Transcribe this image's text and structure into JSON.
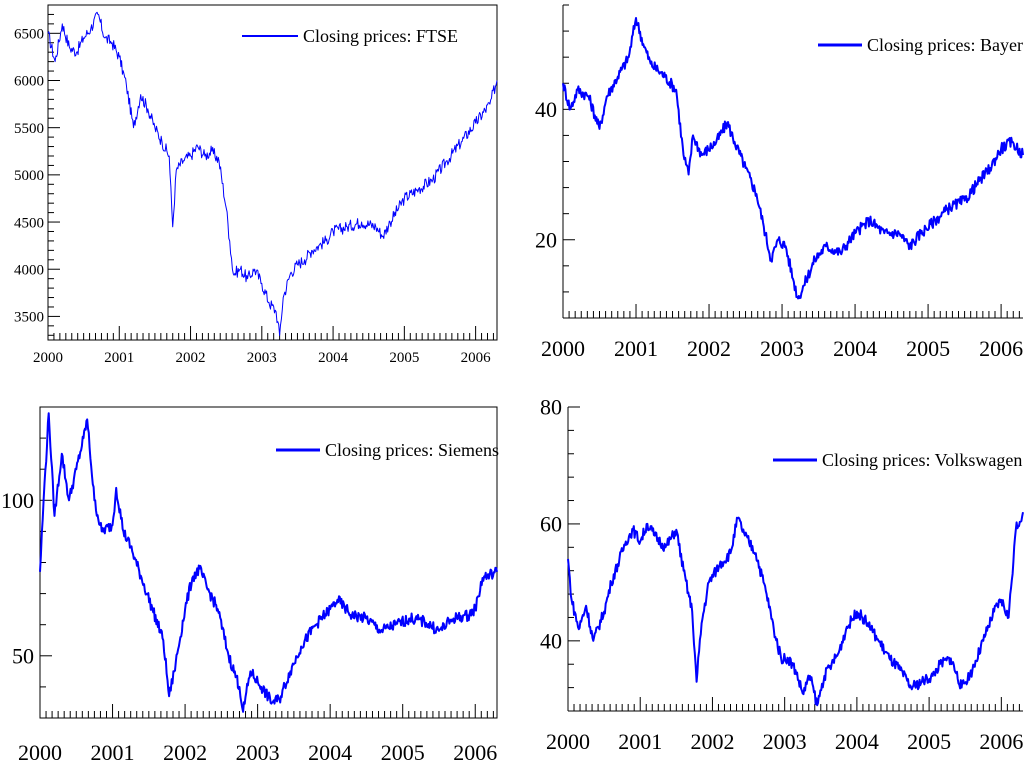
{
  "colors": {
    "series": "#0000ff",
    "axis": "#000000",
    "background": "#ffffff"
  },
  "chart_data": [
    {
      "type": "line",
      "legend": "Closing prices: FTSE",
      "legend_placement": "top-right",
      "grid": false,
      "xlim": [
        2000.0,
        2006.3
      ],
      "ylim": [
        3250,
        6800
      ],
      "xticks": [
        2000,
        2001,
        2002,
        2003,
        2004,
        2005,
        2006
      ],
      "xtick_labels": [
        "2000",
        "2001",
        "2002",
        "2003",
        "2004",
        "2005",
        "2006"
      ],
      "yticks": [
        3500,
        4000,
        4500,
        5000,
        5500,
        6000,
        6500
      ],
      "ytick_labels": [
        "3500",
        "4000",
        "4500",
        "5000",
        "5500",
        "6000",
        "6500"
      ],
      "series": [
        {
          "x": [
            2000.0,
            2000.1,
            2000.2,
            2000.3,
            2000.4,
            2000.5,
            2000.6,
            2000.7,
            2000.8,
            2000.9,
            2001.0,
            2001.1,
            2001.2,
            2001.3,
            2001.4,
            2001.5,
            2001.6,
            2001.7,
            2001.75,
            2001.8,
            2001.9,
            2002.0,
            2002.1,
            2002.2,
            2002.3,
            2002.4,
            2002.5,
            2002.55,
            2002.6,
            2002.7,
            2002.8,
            2002.9,
            2003.0,
            2003.1,
            2003.2,
            2003.25,
            2003.3,
            2003.4,
            2003.5,
            2003.6,
            2003.7,
            2003.8,
            2003.9,
            2004.0,
            2004.2,
            2004.4,
            2004.6,
            2004.7,
            2004.8,
            2005.0,
            2005.2,
            2005.4,
            2005.6,
            2005.8,
            2006.0,
            2006.2,
            2006.3
          ],
          "y": [
            6500,
            6200,
            6600,
            6350,
            6300,
            6450,
            6550,
            6700,
            6450,
            6400,
            6250,
            5950,
            5500,
            5850,
            5700,
            5500,
            5350,
            5200,
            4450,
            5050,
            5150,
            5200,
            5300,
            5200,
            5250,
            5150,
            4650,
            4300,
            3950,
            4000,
            3900,
            4000,
            3850,
            3650,
            3550,
            3300,
            3700,
            3950,
            4050,
            4100,
            4200,
            4250,
            4300,
            4400,
            4450,
            4500,
            4450,
            4350,
            4500,
            4750,
            4850,
            4950,
            5150,
            5350,
            5550,
            5750,
            6000
          ]
        }
      ]
    },
    {
      "type": "line",
      "legend": "Closing prices: Bayer",
      "legend_placement": "top-right",
      "grid": false,
      "xlim": [
        2000.0,
        2006.3
      ],
      "ylim": [
        8,
        56
      ],
      "xticks": [
        2000,
        2001,
        2002,
        2003,
        2004,
        2005,
        2006
      ],
      "xtick_labels": [
        "2000",
        "2001",
        "2002",
        "2003",
        "2004",
        "2005",
        "2006"
      ],
      "yticks": [
        20,
        40
      ],
      "ytick_labels": [
        "20",
        "40"
      ],
      "series": [
        {
          "x": [
            2000.0,
            2000.1,
            2000.2,
            2000.35,
            2000.5,
            2000.6,
            2000.75,
            2000.9,
            2001.0,
            2001.1,
            2001.2,
            2001.3,
            2001.4,
            2001.55,
            2001.65,
            2001.72,
            2001.78,
            2001.9,
            2002.1,
            2002.25,
            2002.35,
            2002.5,
            2002.65,
            2002.75,
            2002.85,
            2002.95,
            2003.05,
            2003.15,
            2003.22,
            2003.3,
            2003.45,
            2003.6,
            2003.8,
            2004.0,
            2004.2,
            2004.4,
            2004.6,
            2004.75,
            2004.9,
            2005.1,
            2005.3,
            2005.5,
            2005.7,
            2005.85,
            2006.0,
            2006.15,
            2006.3
          ],
          "y": [
            44,
            40,
            43,
            42,
            37,
            42,
            45,
            48,
            54,
            50,
            47,
            46,
            45,
            43,
            33,
            30,
            36,
            33,
            35,
            38,
            35,
            31,
            27,
            22,
            17,
            20,
            19,
            14,
            11,
            13,
            17,
            19,
            18,
            21,
            23,
            21,
            21,
            19,
            21,
            23,
            25,
            26,
            29,
            31,
            34,
            35,
            33
          ]
        }
      ]
    },
    {
      "type": "line",
      "legend": "Closing prices: Siemens",
      "legend_placement": "top-right",
      "grid": false,
      "xlim": [
        2000.0,
        2006.3
      ],
      "ylim": [
        30,
        130
      ],
      "xticks": [
        2000,
        2001,
        2002,
        2003,
        2004,
        2005,
        2006
      ],
      "xtick_labels": [
        "2000",
        "2001",
        "2002",
        "2003",
        "2004",
        "2005",
        "2006"
      ],
      "yticks": [
        50,
        100
      ],
      "ytick_labels": [
        "50",
        "100"
      ],
      "series": [
        {
          "x": [
            2000.0,
            2000.05,
            2000.12,
            2000.2,
            2000.3,
            2000.4,
            2000.5,
            2000.6,
            2000.65,
            2000.75,
            2000.85,
            2001.0,
            2001.05,
            2001.15,
            2001.25,
            2001.4,
            2001.55,
            2001.7,
            2001.78,
            2001.85,
            2002.0,
            2002.1,
            2002.2,
            2002.3,
            2002.45,
            2002.6,
            2002.75,
            2002.8,
            2002.9,
            2003.05,
            2003.2,
            2003.3,
            2003.45,
            2003.6,
            2003.8,
            2004.0,
            2004.1,
            2004.3,
            2004.5,
            2004.7,
            2004.9,
            2005.1,
            2005.3,
            2005.5,
            2005.7,
            2005.9,
            2006.0,
            2006.1,
            2006.3
          ],
          "y": [
            77,
            100,
            128,
            95,
            115,
            100,
            110,
            120,
            126,
            100,
            90,
            92,
            104,
            90,
            85,
            75,
            65,
            55,
            37,
            45,
            65,
            75,
            78,
            72,
            65,
            50,
            40,
            32,
            45,
            40,
            35,
            36,
            45,
            53,
            60,
            65,
            68,
            63,
            62,
            58,
            60,
            62,
            61,
            58,
            62,
            63,
            65,
            75,
            77
          ]
        }
      ]
    },
    {
      "type": "line",
      "legend": "Closing prices: Volkswagen",
      "legend_placement": "top-right",
      "grid": false,
      "xlim": [
        2000.0,
        2006.3
      ],
      "ylim": [
        28,
        80
      ],
      "xticks": [
        2000,
        2001,
        2002,
        2003,
        2004,
        2005,
        2006
      ],
      "xtick_labels": [
        "2000",
        "2001",
        "2002",
        "2003",
        "2004",
        "2005",
        "2006"
      ],
      "yticks": [
        40,
        60,
        80
      ],
      "ytick_labels": [
        "40",
        "60",
        "80"
      ],
      "series": [
        {
          "x": [
            2000.0,
            2000.05,
            2000.15,
            2000.25,
            2000.35,
            2000.5,
            2000.6,
            2000.8,
            2000.9,
            2001.0,
            2001.1,
            2001.2,
            2001.35,
            2001.5,
            2001.6,
            2001.72,
            2001.78,
            2001.85,
            2001.95,
            2002.1,
            2002.25,
            2002.35,
            2002.45,
            2002.6,
            2002.75,
            2002.85,
            2002.95,
            2003.05,
            2003.15,
            2003.25,
            2003.35,
            2003.45,
            2003.55,
            2003.65,
            2003.75,
            2003.85,
            2004.0,
            2004.15,
            2004.3,
            2004.45,
            2004.6,
            2004.75,
            2004.9,
            2005.05,
            2005.15,
            2005.3,
            2005.45,
            2005.6,
            2005.75,
            2005.9,
            2006.0,
            2006.1,
            2006.2,
            2006.3
          ],
          "y": [
            54,
            47,
            42,
            46,
            40,
            45,
            50,
            57,
            59,
            57,
            60,
            58,
            56,
            59,
            52,
            45,
            33,
            43,
            50,
            53,
            55,
            61,
            58,
            55,
            48,
            42,
            37,
            37,
            35,
            31,
            34,
            29,
            34,
            36,
            38,
            42,
            45,
            43,
            40,
            37,
            35,
            32,
            33,
            34,
            36,
            37,
            32,
            35,
            40,
            45,
            47,
            44,
            59,
            62
          ]
        }
      ]
    }
  ]
}
